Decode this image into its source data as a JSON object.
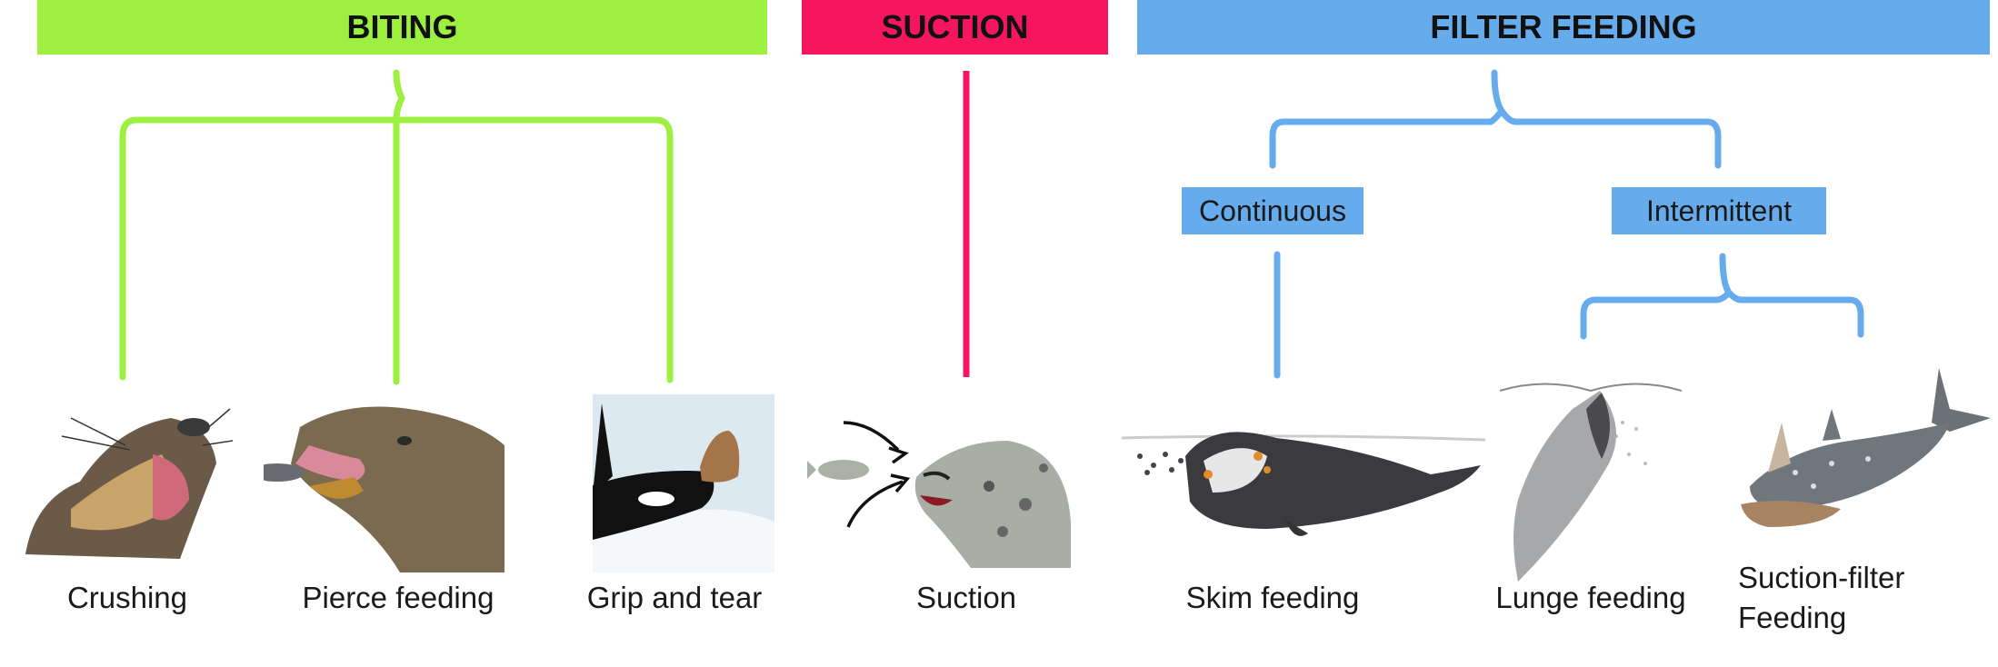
{
  "colors": {
    "biting": "#9ef040",
    "suction": "#f5165f",
    "filter": "#66aced",
    "ink": "#1a1a1a"
  },
  "categories": [
    {
      "id": "biting",
      "title": "BITING"
    },
    {
      "id": "suction",
      "title": "SUCTION"
    },
    {
      "id": "filter",
      "title": "FILTER FEEDING"
    }
  ],
  "subcategories": {
    "continuous": "Continuous",
    "intermittent": "Intermittent"
  },
  "modes": [
    {
      "label": "Crushing",
      "icon": "sea-lion-crushing-illustration"
    },
    {
      "label": "Pierce feeding",
      "icon": "sea-lion-fish-illustration"
    },
    {
      "label": "Grip and tear",
      "icon": "orca-seal-illustration"
    },
    {
      "label": "Suction",
      "icon": "seal-suction-illustration"
    },
    {
      "label": "Skim feeding",
      "icon": "right-whale-illustration"
    },
    {
      "label": "Lunge feeding",
      "icon": "lunging-whale-illustration"
    },
    {
      "label": "Suction-filter",
      "label2": "Feeding",
      "icon": "gray-whale-illustration"
    }
  ]
}
